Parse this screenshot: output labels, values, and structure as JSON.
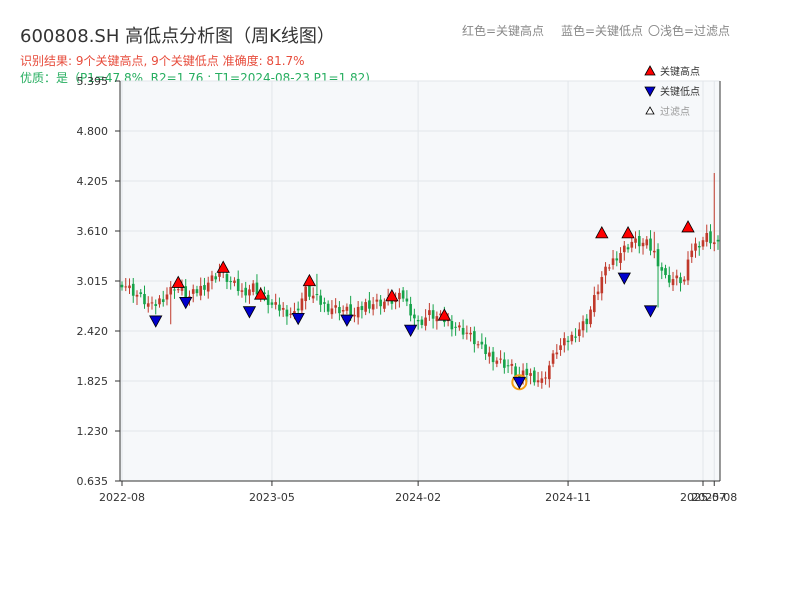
{
  "header": {
    "title": "600808.SH 高低点分析图（周K线图）",
    "result_line": "识别结果: 9个关键高点, 9个关键低点  准确度: 81.7%",
    "quality_line": "优质：是（P1=47.8%, R2=1.76 ; T1=2024-08-23 P1=1.82)"
  },
  "top_legend": {
    "red_label": "红色=关键高点",
    "blue_label": "蓝色=关键低点",
    "light_label": "〇浅色=过滤点"
  },
  "chart_data": {
    "type": "candlestick",
    "y_ticks": [
      0.635,
      1.23,
      1.825,
      2.42,
      3.015,
      3.61,
      4.205,
      4.8,
      5.395
    ],
    "y_tick_labels": [
      "0.635",
      "1.230",
      "1.825",
      "2.420",
      "3.015",
      "3.610",
      "4.205",
      "4.800",
      "5.395"
    ],
    "ylim": [
      0.635,
      5.395
    ],
    "x_ticks": [
      {
        "label": "2022-08",
        "index": 0
      },
      {
        "label": "2023-05",
        "index": 40
      },
      {
        "label": "2024-02",
        "index": 79
      },
      {
        "label": "2024-11",
        "index": 119
      },
      {
        "label": "2025-07",
        "index": 155
      },
      {
        "label": "2025-08",
        "index": 158
      }
    ],
    "n_weeks": 160,
    "close_path": [
      [
        0,
        3.0
      ],
      [
        8,
        2.7
      ],
      [
        14,
        2.95
      ],
      [
        18,
        2.82
      ],
      [
        26,
        3.12
      ],
      [
        32,
        2.88
      ],
      [
        35,
        2.95
      ],
      [
        40,
        2.72
      ],
      [
        46,
        2.62
      ],
      [
        49,
        2.9
      ],
      [
        54,
        2.72
      ],
      [
        60,
        2.66
      ],
      [
        62,
        2.6
      ],
      [
        65,
        2.74
      ],
      [
        72,
        2.78
      ],
      [
        75,
        2.83
      ],
      [
        79,
        2.5
      ],
      [
        82,
        2.62
      ],
      [
        86,
        2.55
      ],
      [
        92,
        2.4
      ],
      [
        96,
        2.2
      ],
      [
        100,
        2.08
      ],
      [
        104,
        1.98
      ],
      [
        106,
        1.86
      ],
      [
        108,
        1.92
      ],
      [
        112,
        1.82
      ],
      [
        116,
        2.2
      ],
      [
        120,
        2.35
      ],
      [
        124,
        2.55
      ],
      [
        128,
        3.05
      ],
      [
        130,
        3.2
      ],
      [
        132,
        3.32
      ],
      [
        136,
        3.48
      ],
      [
        140,
        3.45
      ],
      [
        142,
        3.35
      ],
      [
        145,
        3.05
      ],
      [
        150,
        3.02
      ],
      [
        152,
        3.4
      ],
      [
        156,
        3.55
      ],
      [
        160,
        3.4
      ]
    ],
    "events": [
      {
        "index": 13,
        "spike": 2.5
      },
      {
        "index": 45,
        "spike": 2.7
      },
      {
        "index": 52,
        "spike": 3.1
      },
      {
        "index": 83,
        "spike": 2.45
      },
      {
        "index": 126,
        "spike": 2.85
      },
      {
        "index": 142,
        "spike": 3.6
      },
      {
        "index": 143,
        "spike": 2.7
      },
      {
        "index": 158,
        "spike": 4.3
      }
    ],
    "key_highs": [
      {
        "index": 15,
        "value": 3.01
      },
      {
        "index": 27,
        "value": 3.19
      },
      {
        "index": 37,
        "value": 2.87
      },
      {
        "index": 50,
        "value": 3.03
      },
      {
        "index": 72,
        "value": 2.85
      },
      {
        "index": 86,
        "value": 2.62
      },
      {
        "index": 128,
        "value": 3.6
      },
      {
        "index": 135,
        "value": 3.6
      },
      {
        "index": 151,
        "value": 3.67
      }
    ],
    "key_lows": [
      {
        "index": 9,
        "value": 2.54
      },
      {
        "index": 17,
        "value": 2.76
      },
      {
        "index": 34,
        "value": 2.65
      },
      {
        "index": 47,
        "value": 2.57
      },
      {
        "index": 60,
        "value": 2.55
      },
      {
        "index": 77,
        "value": 2.43
      },
      {
        "index": 106,
        "value": 1.81
      },
      {
        "index": 134,
        "value": 3.05
      },
      {
        "index": 141,
        "value": 2.66
      }
    ],
    "filtered_low": {
      "index": 106,
      "value": 1.81
    },
    "legend": {
      "high_label": "关键高点",
      "low_label": "关键低点",
      "filtered_label": "过滤点",
      "placement": "top-right"
    },
    "colors": {
      "up": "#c0392b",
      "down": "#16a34a",
      "high_marker": "#ff0000",
      "low_marker": "#0000cc",
      "filtered_ring": "#f39c12",
      "plot_bg": "#f6f8fa",
      "grid": "#e2e6ea"
    }
  }
}
